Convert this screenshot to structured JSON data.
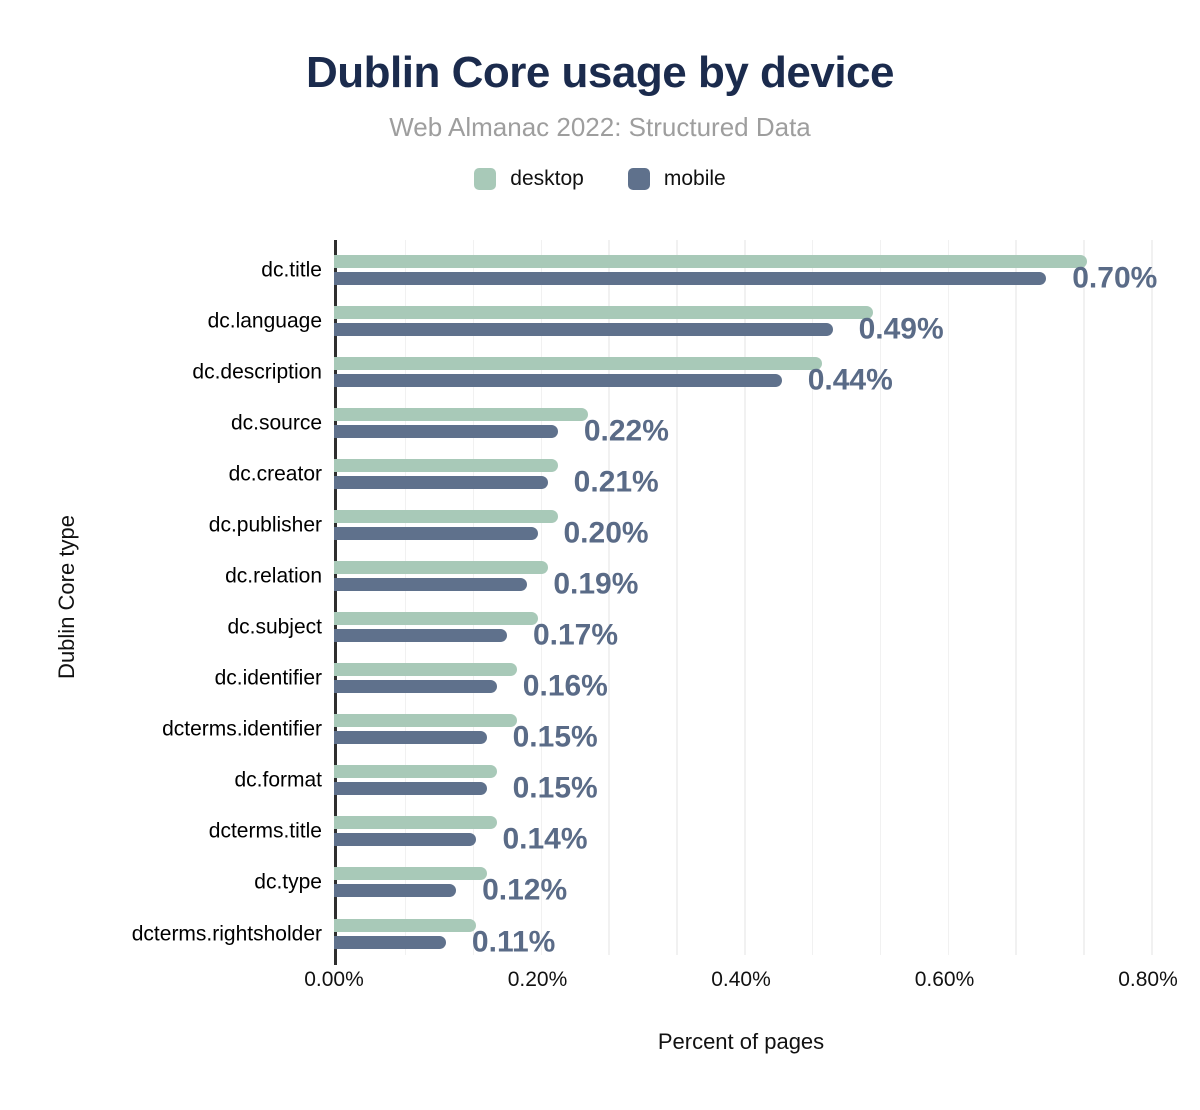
{
  "header": {
    "title": "Dublin Core usage by device",
    "subtitle": "Web Almanac 2022: Structured Data"
  },
  "legend": [
    {
      "label": "desktop",
      "color": "#a8c9b8"
    },
    {
      "label": "mobile",
      "color": "#5f718c"
    }
  ],
  "colors": {
    "desktop_bar": "#a8c9b8",
    "mobile_bar": "#5f718c",
    "value_label": "#5a6b87",
    "title_text": "#1b2b4d",
    "subtitle_text": "#9e9e9e",
    "axis_line": "#2e2e2e",
    "gridline": "#f1f1f1"
  },
  "chart_data": {
    "type": "bar",
    "orientation": "horizontal",
    "title": "Dublin Core usage by device",
    "subtitle": "Web Almanac 2022: Structured Data",
    "xlabel": "Percent of pages",
    "ylabel": "Dublin Core type",
    "xlim": [
      0,
      0.8
    ],
    "x_ticks": [
      "0.00%",
      "0.20%",
      "0.40%",
      "0.60%",
      "0.80%"
    ],
    "x_tick_values": [
      0,
      0.2,
      0.4,
      0.6,
      0.8
    ],
    "grid": "vertical minor gridlines, 12 intervals across 0–0.80%",
    "legend_position": "top",
    "categories": [
      "dc.title",
      "dc.language",
      "dc.description",
      "dc.source",
      "dc.creator",
      "dc.publisher",
      "dc.relation",
      "dc.subject",
      "dc.identifier",
      "dcterms.identifier",
      "dc.format",
      "dcterms.title",
      "dc.type",
      "dcterms.rightsholder"
    ],
    "series": [
      {
        "name": "desktop",
        "values": [
          0.74,
          0.53,
          0.48,
          0.25,
          0.22,
          0.22,
          0.21,
          0.2,
          0.18,
          0.18,
          0.16,
          0.16,
          0.15,
          0.14
        ]
      },
      {
        "name": "mobile",
        "values": [
          0.7,
          0.49,
          0.44,
          0.22,
          0.21,
          0.2,
          0.19,
          0.17,
          0.16,
          0.15,
          0.15,
          0.14,
          0.12,
          0.11
        ]
      }
    ],
    "value_labels": [
      "0.70%",
      "0.49%",
      "0.44%",
      "0.22%",
      "0.21%",
      "0.20%",
      "0.19%",
      "0.17%",
      "0.16%",
      "0.15%",
      "0.15%",
      "0.14%",
      "0.12%",
      "0.11%"
    ]
  }
}
